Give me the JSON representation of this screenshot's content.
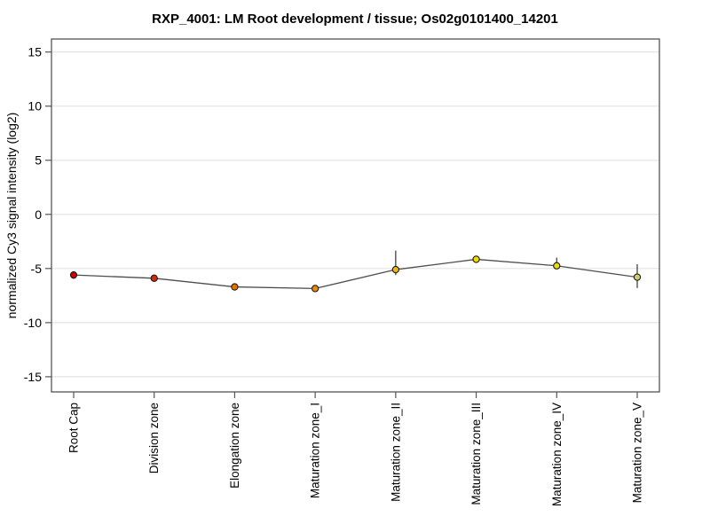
{
  "chart_data": {
    "type": "line",
    "title": "RXP_4001: LM Root development / tissue; Os02g0101400_14201",
    "xlabel": "",
    "ylabel": "normalized Cy3 signal intensity (log2)",
    "ylim": [
      -16.4,
      16.2
    ],
    "yticks": [
      15,
      10,
      5,
      0,
      -5,
      -10,
      -15
    ],
    "grid": "horizontal",
    "legend_position": "none",
    "categories": [
      "Root Cap",
      "Division zone",
      "Elongation zone",
      "Maturation zone_I",
      "Maturation zone_II",
      "Maturation zone_III",
      "Maturation zone_IV",
      "Maturation zone_V"
    ],
    "series": [
      {
        "name": "normalized Cy3 signal intensity",
        "values": [
          -5.6,
          -5.9,
          -6.7,
          -6.85,
          -5.1,
          -4.15,
          -4.75,
          -5.8
        ],
        "err_lo": [
          -5.95,
          -6.2,
          -6.78,
          -7.15,
          -5.6,
          -4.25,
          -5.0,
          -6.8
        ],
        "err_hi": [
          -5.25,
          -5.6,
          -6.62,
          -6.55,
          -3.35,
          -4.05,
          -4.0,
          -4.6
        ],
        "point_colors": [
          "#cc0000",
          "#d42a00",
          "#e87000",
          "#ee8800",
          "#eeb800",
          "#eedc00",
          "#ecde00",
          "#cdcd6e"
        ]
      }
    ],
    "colors": {
      "line": "#4d4d4d",
      "error_bar": "#333333",
      "point_stroke": "#1a1a1a",
      "grid": "#e4e4e4",
      "axis_box": "#555555",
      "tick": "#555555",
      "background": "#ffffff"
    }
  }
}
